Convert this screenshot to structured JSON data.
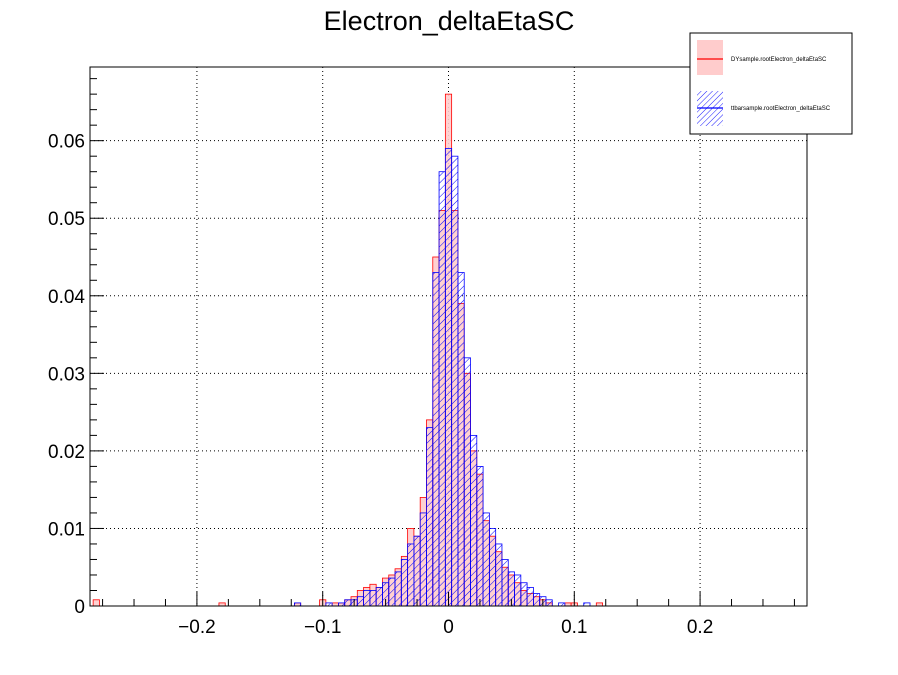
{
  "chart_data": {
    "type": "area",
    "title": "Electron_deltaEtaSC",
    "xlabel": "",
    "ylabel": "",
    "xlim": [
      -0.285,
      0.285
    ],
    "ylim": [
      0,
      0.0695
    ],
    "grid": true,
    "legend_position": "top-right",
    "x_ticks": [
      -0.2,
      -0.1,
      0,
      0.1,
      0.2
    ],
    "x_tick_labels": [
      "−0.2",
      "−0.1",
      "0",
      "0.1",
      "0.2"
    ],
    "y_ticks": [
      0,
      0.01,
      0.02,
      0.03,
      0.04,
      0.05,
      0.06
    ],
    "y_tick_labels": [
      "0",
      "0.01",
      "0.02",
      "0.03",
      "0.04",
      "0.05",
      "0.06"
    ],
    "series": [
      {
        "name": "DYsample.rootElectron_deltaEtaSC",
        "color": "#ff0000",
        "fill": "#ffcccc",
        "style": "solid-fill",
        "bins": [
          [
            -0.28,
            0.0008
          ],
          [
            -0.18,
            0.0004
          ],
          [
            -0.12,
            0.0004
          ],
          [
            -0.1,
            0.0008
          ],
          [
            -0.09,
            0.0004
          ],
          [
            -0.085,
            0.0004
          ],
          [
            -0.08,
            0.0008
          ],
          [
            -0.075,
            0.0012
          ],
          [
            -0.07,
            0.002
          ],
          [
            -0.065,
            0.0024
          ],
          [
            -0.06,
            0.0028
          ],
          [
            -0.055,
            0.0024
          ],
          [
            -0.05,
            0.0036
          ],
          [
            -0.045,
            0.004
          ],
          [
            -0.04,
            0.0048
          ],
          [
            -0.035,
            0.0064
          ],
          [
            -0.03,
            0.01
          ],
          [
            -0.025,
            0.009
          ],
          [
            -0.02,
            0.014
          ],
          [
            -0.015,
            0.024
          ],
          [
            -0.01,
            0.045
          ],
          [
            -0.005,
            0.051
          ],
          [
            0.0,
            0.066
          ],
          [
            0.005,
            0.051
          ],
          [
            0.01,
            0.039
          ],
          [
            0.015,
            0.03
          ],
          [
            0.02,
            0.02
          ],
          [
            0.025,
            0.017
          ],
          [
            0.03,
            0.011
          ],
          [
            0.035,
            0.009
          ],
          [
            0.04,
            0.007
          ],
          [
            0.045,
            0.005
          ],
          [
            0.05,
            0.004
          ],
          [
            0.055,
            0.003
          ],
          [
            0.06,
            0.002
          ],
          [
            0.065,
            0.0016
          ],
          [
            0.07,
            0.0012
          ],
          [
            0.075,
            0.0008
          ],
          [
            0.08,
            0.0004
          ],
          [
            0.095,
            0.0004
          ],
          [
            0.1,
            0.0004
          ],
          [
            0.12,
            0.0004
          ]
        ]
      },
      {
        "name": "ttbarsample.rootElectron_deltaEtaSC",
        "color": "#0000ff",
        "fill": "#0000ff",
        "style": "hatched",
        "bins": [
          [
            -0.12,
            0.0004
          ],
          [
            -0.095,
            0.0004
          ],
          [
            -0.085,
            0.0004
          ],
          [
            -0.08,
            0.0008
          ],
          [
            -0.075,
            0.0008
          ],
          [
            -0.07,
            0.0012
          ],
          [
            -0.065,
            0.002
          ],
          [
            -0.06,
            0.002
          ],
          [
            -0.055,
            0.0024
          ],
          [
            -0.05,
            0.003
          ],
          [
            -0.045,
            0.0036
          ],
          [
            -0.04,
            0.0044
          ],
          [
            -0.035,
            0.006
          ],
          [
            -0.03,
            0.008
          ],
          [
            -0.025,
            0.009
          ],
          [
            -0.02,
            0.012
          ],
          [
            -0.015,
            0.023
          ],
          [
            -0.01,
            0.043
          ],
          [
            -0.005,
            0.056
          ],
          [
            0.0,
            0.059
          ],
          [
            0.005,
            0.058
          ],
          [
            0.01,
            0.043
          ],
          [
            0.015,
            0.032
          ],
          [
            0.02,
            0.022
          ],
          [
            0.025,
            0.018
          ],
          [
            0.03,
            0.012
          ],
          [
            0.035,
            0.01
          ],
          [
            0.04,
            0.008
          ],
          [
            0.045,
            0.006
          ],
          [
            0.05,
            0.0044
          ],
          [
            0.055,
            0.004
          ],
          [
            0.06,
            0.003
          ],
          [
            0.065,
            0.0024
          ],
          [
            0.07,
            0.0016
          ],
          [
            0.075,
            0.0012
          ],
          [
            0.08,
            0.0008
          ],
          [
            0.09,
            0.0004
          ],
          [
            0.11,
            0.0004
          ]
        ]
      }
    ],
    "bin_width": 0.005
  }
}
